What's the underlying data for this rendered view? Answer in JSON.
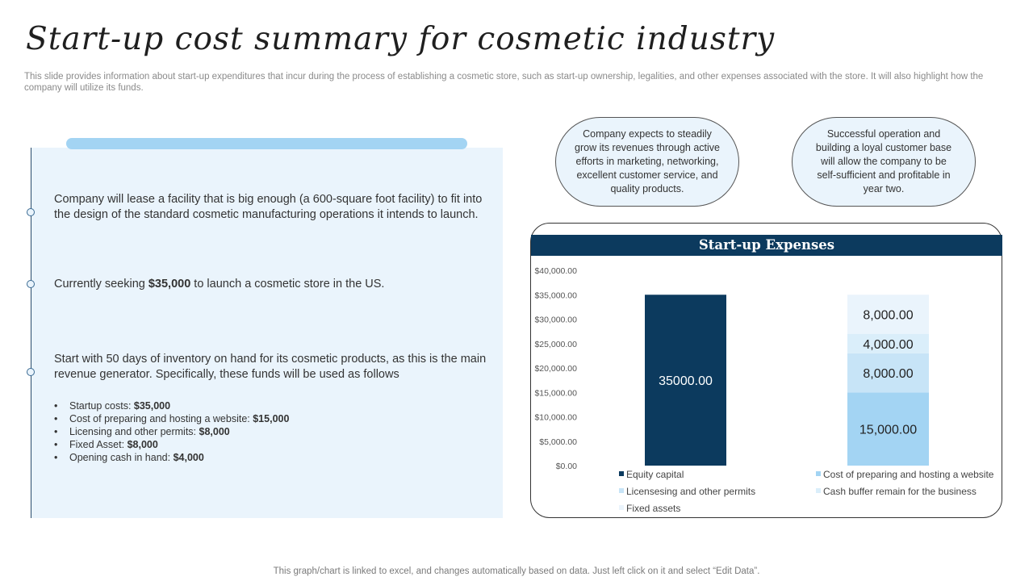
{
  "header": {
    "title": "Start-up cost summary for cosmetic industry",
    "subtitle": "This slide provides information about start-up expenditures that incur during the process of establishing a cosmetic store, such as start-up ownership, legalities, and other expenses associated with the store. It will also highlight how the company will utilize its funds."
  },
  "points": {
    "p1": "Company will lease a facility that is big enough (a 600-square foot facility) to fit into the design of the standard cosmetic manufacturing operations it intends to launch.",
    "p2_prefix": "Currently seeking ",
    "p2_bold": "$35,000",
    "p2_suffix": " to launch a cosmetic store in the US.",
    "p3": "Start with 50 days of inventory on hand for its cosmetic products, as this is the main revenue generator. Specifically, these funds will be used as follows"
  },
  "bullets": [
    {
      "label": "Startup costs: ",
      "value": "$35,000"
    },
    {
      "label": "Cost of preparing and hosting a website: ",
      "value": "$15,000"
    },
    {
      "label": "Licensing and other permits: ",
      "value": "$8,000"
    },
    {
      "label": "Fixed Asset: ",
      "value": "$8,000"
    },
    {
      "label": "Opening cash in hand: ",
      "value": "$4,000"
    }
  ],
  "ovals": {
    "left": "Company expects to steadily grow its revenues through active efforts in marketing, networking, excellent customer service, and quality products.",
    "right": "Successful operation and building a loyal customer base will allow the company to be self-sufficient and profitable in year two."
  },
  "footer": "This graph/chart is linked to excel, and changes automatically based on data. Just left click on it and select “Edit Data”.",
  "chart_data": {
    "type": "bar",
    "stacked": true,
    "title": "Start-up Expenses",
    "ylim": [
      0,
      40000
    ],
    "yticks": [
      "$0.00",
      "$5,000.00",
      "$10,000.00",
      "$15,000.00",
      "$20,000.00",
      "$25,000.00",
      "$30,000.00",
      "$35,000.00",
      "$40,000.00"
    ],
    "ytick_values": [
      0,
      5000,
      10000,
      15000,
      20000,
      25000,
      30000,
      35000,
      40000
    ],
    "grid": false,
    "legend_position": "bottom",
    "bars": [
      {
        "segments": [
          {
            "series": "Equity capital",
            "value": 35000,
            "label": "35000.00"
          }
        ]
      },
      {
        "segments": [
          {
            "series": "Cost of preparing and hosting a website",
            "value": 15000,
            "label": "15,000.00"
          },
          {
            "series": "Licensesing and other permits",
            "value": 8000,
            "label": "8,000.00"
          },
          {
            "series": "Cash buffer remain for the business",
            "value": 4000,
            "label": "4,000.00"
          },
          {
            "series": "Fixed assets",
            "value": 8000,
            "label": "8,000.00"
          }
        ]
      }
    ],
    "series": [
      {
        "name": "Equity capital",
        "color": "#0c3a5e"
      },
      {
        "name": "Cost of preparing and hosting a website",
        "color": "#a3d4f3"
      },
      {
        "name": "Licensesing and other permits",
        "color": "#c7e4f7"
      },
      {
        "name": "Cash buffer remain for the business",
        "color": "#daeefa"
      },
      {
        "name": "Fixed assets",
        "color": "#eaf4fc"
      }
    ]
  }
}
